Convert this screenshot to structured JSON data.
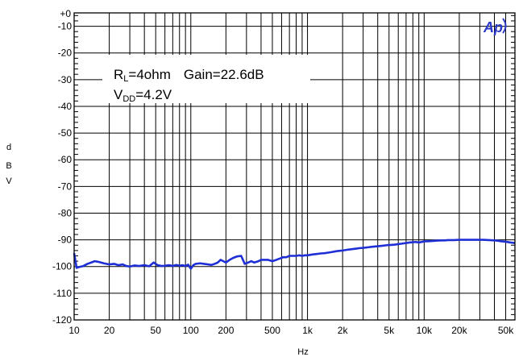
{
  "chart_data": {
    "type": "line",
    "xlabel": "Hz",
    "ylabel": [
      "d",
      "B",
      "V"
    ],
    "x_scale": "log",
    "xlim": [
      10,
      60000
    ],
    "ylim": [
      -120,
      -5
    ],
    "grid": true,
    "x_ticks": [
      {
        "value": 10,
        "label": "10"
      },
      {
        "value": 20,
        "label": "20"
      },
      {
        "value": 50,
        "label": "50"
      },
      {
        "value": 100,
        "label": "100"
      },
      {
        "value": 200,
        "label": "200"
      },
      {
        "value": 500,
        "label": "500"
      },
      {
        "value": 1000,
        "label": "1k"
      },
      {
        "value": 2000,
        "label": "2k"
      },
      {
        "value": 5000,
        "label": "5k"
      },
      {
        "value": 10000,
        "label": "10k"
      },
      {
        "value": 20000,
        "label": "20k"
      },
      {
        "value": 50000,
        "label": "50k"
      }
    ],
    "y_ticks": [
      {
        "value": -10,
        "label": "-10"
      },
      {
        "value": -20,
        "label": "-20"
      },
      {
        "value": -30,
        "label": "-30"
      },
      {
        "value": -40,
        "label": "-40"
      },
      {
        "value": -50,
        "label": "-50"
      },
      {
        "value": -60,
        "label": "-60"
      },
      {
        "value": -70,
        "label": "-70"
      },
      {
        "value": -80,
        "label": "-80"
      },
      {
        "value": -90,
        "label": "-90"
      },
      {
        "value": -100,
        "label": "-100"
      },
      {
        "value": -110,
        "label": "-110"
      },
      {
        "value": -120,
        "label": "-120"
      }
    ],
    "top_tick_label": "+0",
    "annotations": {
      "line1_main": "R",
      "line1_sub": "L",
      "line1_rest": "=4ohm",
      "line1_gain": "Gain=22.6dB",
      "line2_main": "V",
      "line2_sub": "DD",
      "line2_rest": "=4.2V"
    },
    "logo": "Ap",
    "series": [
      {
        "color": "#1f2fd6",
        "x": [
          10,
          10.5,
          11,
          12,
          13,
          14,
          15,
          16,
          18,
          20,
          22,
          24,
          26,
          28,
          30,
          33,
          36,
          40,
          44,
          48,
          52,
          56,
          60,
          65,
          70,
          75,
          80,
          85,
          90,
          95,
          100,
          105,
          110,
          120,
          130,
          140,
          150,
          160,
          170,
          180,
          190,
          200,
          215,
          230,
          250,
          270,
          290,
          310,
          330,
          350,
          380,
          400,
          430,
          460,
          500,
          540,
          580,
          620,
          660,
          700,
          750,
          800,
          850,
          900,
          950,
          1000,
          1100,
          1200,
          1300,
          1400,
          1500,
          1600,
          1700,
          1800,
          1900,
          2000,
          2200,
          2400,
          2600,
          2800,
          3000,
          3300,
          3600,
          4000,
          4400,
          4800,
          5200,
          5600,
          6000,
          6500,
          7000,
          7500,
          8000,
          8500,
          9000,
          10000,
          11000,
          12000,
          13000,
          14000,
          15000,
          16000,
          18000,
          20000,
          22000,
          25000,
          28000,
          32000,
          36000,
          40000,
          45000,
          50000,
          55000,
          60000
        ],
        "y": [
          -95,
          -100.5,
          -100.2,
          -99.8,
          -99,
          -98.5,
          -98,
          -98.2,
          -98.8,
          -99.2,
          -99,
          -99.5,
          -99.2,
          -99.8,
          -100,
          -99.6,
          -99.8,
          -99.5,
          -99.9,
          -98.5,
          -99.5,
          -99.8,
          -99.7,
          -99.5,
          -99.8,
          -99.4,
          -99.7,
          -99.5,
          -99.8,
          -99.3,
          -100.8,
          -99.5,
          -99,
          -98.8,
          -99,
          -99.2,
          -99.4,
          -99,
          -98.5,
          -97.5,
          -98,
          -98.5,
          -97.5,
          -96.8,
          -96.2,
          -96,
          -99,
          -98.5,
          -98,
          -98.5,
          -98,
          -97.5,
          -97.5,
          -97.5,
          -98,
          -97.5,
          -97,
          -96.5,
          -96.5,
          -96,
          -96,
          -96,
          -95.8,
          -96,
          -95.8,
          -95.8,
          -95.5,
          -95.3,
          -95.1,
          -95,
          -94.8,
          -94.6,
          -94.4,
          -94.2,
          -94.1,
          -94,
          -93.7,
          -93.5,
          -93.3,
          -93.1,
          -93,
          -92.8,
          -92.6,
          -92.4,
          -92.2,
          -92,
          -91.9,
          -91.8,
          -91.6,
          -91.4,
          -91.2,
          -91,
          -90.9,
          -90.8,
          -91,
          -90.6,
          -90.5,
          -90.4,
          -90.3,
          -90.2,
          -90.2,
          -90.1,
          -90.1,
          -90,
          -90,
          -90,
          -90,
          -90,
          -90.1,
          -90.2,
          -90.5,
          -90.7,
          -91,
          -91.2
        ]
      }
    ]
  }
}
